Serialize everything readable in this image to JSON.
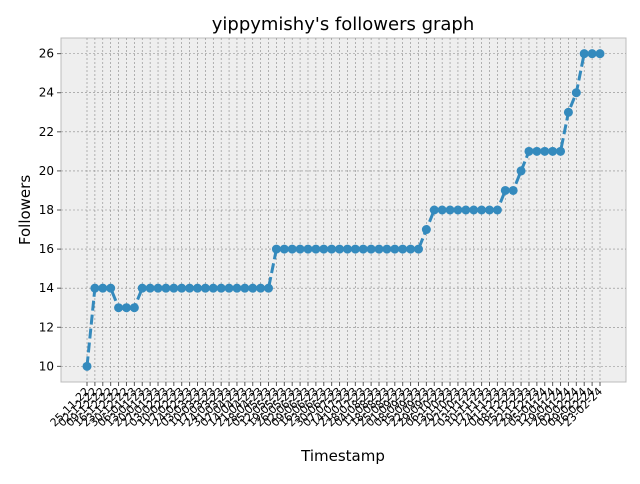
{
  "colors": {
    "plot_background": "#EEEEEE",
    "grid": "#888888",
    "series": "#348ABD",
    "axes_edge": "#BCBCBC"
  },
  "chart_data": {
    "type": "line",
    "title": "yippymishy's followers graph",
    "xlabel": "Timestamp",
    "ylabel": "Followers",
    "ylim": [
      9.2,
      26.8
    ],
    "yticks": [
      10,
      12,
      14,
      16,
      18,
      20,
      22,
      24,
      26
    ],
    "grid": true,
    "legend": "none",
    "line_style": "dashed",
    "marker": "circle",
    "x": [
      "25-11-22",
      "02-12-22",
      "09-12-22",
      "16-12-22",
      "23-12-22",
      "30-12-22",
      "06-01-23",
      "13-01-23",
      "20-01-23",
      "27-01-23",
      "03-02-23",
      "10-02-23",
      "17-02-23",
      "24-02-23",
      "03-03-23",
      "10-03-23",
      "17-03-23",
      "24-03-23",
      "31-03-23",
      "07-04-23",
      "14-04-23",
      "21-04-23",
      "28-04-23",
      "05-05-23",
      "12-05-23",
      "19-05-23",
      "26-05-23",
      "02-06-23",
      "09-06-23",
      "16-06-23",
      "23-06-23",
      "30-06-23",
      "07-07-23",
      "14-07-23",
      "21-07-23",
      "28-07-23",
      "04-08-23",
      "11-08-23",
      "18-08-23",
      "25-08-23",
      "01-09-23",
      "08-09-23",
      "15-09-23",
      "22-09-23",
      "29-09-23",
      "06-10-23",
      "13-10-23",
      "20-10-23",
      "27-10-23",
      "03-11-23",
      "10-11-23",
      "17-11-23",
      "24-11-23",
      "01-12-23",
      "08-12-23",
      "15-12-23",
      "22-12-23",
      "29-12-23",
      "05-01-24",
      "12-01-24",
      "19-01-24",
      "26-01-24",
      "02-02-24",
      "09-02-24",
      "16-02-24",
      "23-02-24"
    ],
    "series": [
      {
        "values": [
          10,
          14,
          14,
          14,
          13,
          13,
          13,
          14,
          14,
          14,
          14,
          14,
          14,
          14,
          14,
          14,
          14,
          14,
          14,
          14,
          14,
          14,
          14,
          14,
          16,
          16,
          16,
          16,
          16,
          16,
          16,
          16,
          16,
          16,
          16,
          16,
          16,
          16,
          16,
          16,
          16,
          16,
          16,
          17,
          18,
          18,
          18,
          18,
          18,
          18,
          18,
          18,
          18,
          19,
          19,
          20,
          21,
          21,
          21,
          21,
          21,
          23,
          24,
          26,
          26,
          26
        ]
      }
    ]
  }
}
